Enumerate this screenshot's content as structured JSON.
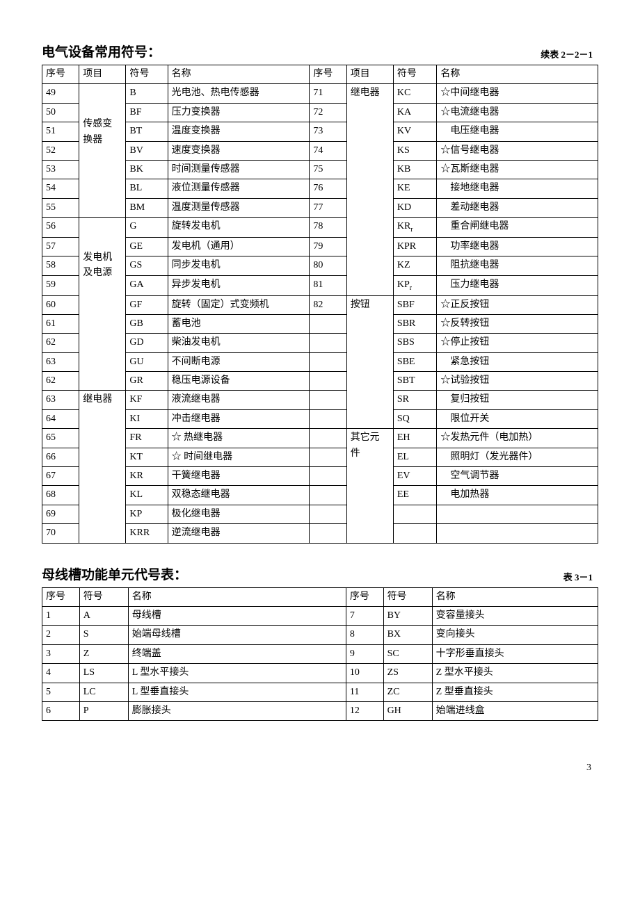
{
  "page_number": "3",
  "table1": {
    "title": "电气设备常用符号：",
    "caption": "续表 2－2－1",
    "col_widths": [
      "46",
      "58",
      "52",
      "176",
      "46",
      "58",
      "54",
      "200"
    ],
    "header": [
      "序号",
      "项目",
      "符号",
      "名称",
      "序号",
      "项目",
      "符号",
      "名称"
    ],
    "rows": [
      {
        "n1": "49",
        "cat1": "",
        "sym1": "B",
        "name1": "光电池、热电传感器",
        "n2": "71",
        "cat2": "继电器",
        "sym2": "KC",
        "name2": "☆中间继电器"
      },
      {
        "n1": "50",
        "cat1": "",
        "sym1": "BF",
        "name1": "压力变换器",
        "n2": "72",
        "cat2": "",
        "sym2": "KA",
        "name2": "☆电流继电器"
      },
      {
        "n1": "51",
        "cat1": "传感变",
        "sym1": "BT",
        "name1": "温度变换器",
        "n2": "73",
        "cat2": "",
        "sym2": "KV",
        "name2": "　电压继电器"
      },
      {
        "n1": "52",
        "cat1": "换器",
        "sym1": "BV",
        "name1": "速度变换器",
        "n2": "74",
        "cat2": "",
        "sym2": "KS",
        "name2": "☆信号继电器"
      },
      {
        "n1": "53",
        "cat1": "",
        "sym1": "BK",
        "name1": "时间测量传感器",
        "n2": "75",
        "cat2": "",
        "sym2": "KB",
        "name2": "☆瓦斯继电器"
      },
      {
        "n1": "54",
        "cat1": "",
        "sym1": "BL",
        "name1": "液位测量传感器",
        "n2": "76",
        "cat2": "",
        "sym2": "KE",
        "name2": "　接地继电器"
      },
      {
        "n1": "55",
        "cat1": "",
        "sym1": "BM",
        "name1": "温度测量传感器",
        "n2": "77",
        "cat2": "",
        "sym2": " KD",
        "name2": "　差动继电器"
      },
      {
        "n1": "56",
        "cat1": "",
        "sym1": "G",
        "name1": "旋转发电机",
        "n2": "78",
        "cat2": "",
        "sym2": "KR<sub>r</sub>",
        "name2": "　重合闸继电器"
      },
      {
        "n1": "57",
        "cat1": "",
        "sym1": "GE",
        "name1": "发电机（通用）",
        "n2": "79",
        "cat2": "",
        "sym2": "KPR",
        "name2": "　功率继电器"
      },
      {
        "n1": "58",
        "cat1": "发电机",
        "sym1": "GS",
        "name1": "同步发电机",
        "n2": "80",
        "cat2": "",
        "sym2": "KZ",
        "name2": "　阻抗继电器"
      },
      {
        "n1": "59",
        "cat1": "及电源",
        "sym1": "GA",
        "name1": "异步发电机",
        "n2": "81",
        "cat2": "",
        "sym2": "KP<sub>r</sub>",
        "name2": "　压力继电器"
      },
      {
        "n1": "60",
        "cat1": "",
        "sym1": "GF",
        "name1": "旋转（固定）式变频机",
        "n2": "82",
        "cat2": "按钮",
        "sym2": "SBF",
        "name2": "☆正反按钮"
      },
      {
        "n1": "61",
        "cat1": "",
        "sym1": "GB",
        "name1": "蓄电池",
        "n2": "",
        "cat2": "",
        "sym2": "SBR",
        "name2": "☆反转按钮"
      },
      {
        "n1": "62",
        "cat1": "",
        "sym1": "GD",
        "name1": "柴油发电机",
        "n2": "",
        "cat2": "",
        "sym2": "SBS",
        "name2": "☆停止按钮"
      },
      {
        "n1": "63",
        "cat1": "",
        "sym1": "GU",
        "name1": "不间断电源",
        "n2": "",
        "cat2": "",
        "sym2": "SBE",
        "name2": "　紧急按钮"
      },
      {
        "n1": "62",
        "cat1": "",
        "sym1": "GR",
        "name1": "稳压电源设备",
        "n2": "",
        "cat2": "",
        "sym2": "SBT",
        "name2": "☆试验按钮"
      },
      {
        "n1": "63",
        "cat1": "继电器",
        "sym1": "KF",
        "name1": "液流继电器",
        "n2": "",
        "cat2": "",
        "sym2": "SR",
        "name2": "　复归按钮"
      },
      {
        "n1": "64",
        "cat1": "",
        "sym1": "KI",
        "name1": "冲击继电器",
        "n2": "",
        "cat2": "",
        "sym2": "SQ",
        "name2": "　限位开关"
      },
      {
        "n1": "65",
        "cat1": "",
        "sym1": "FR",
        "name1": "☆ 热继电器",
        "n2": "",
        "cat2": "其它元",
        "sym2": "EH",
        "name2": "☆发热元件（电加热）"
      },
      {
        "n1": "66",
        "cat1": "",
        "sym1": "KT",
        "name1": "☆ 时间继电器",
        "n2": "",
        "cat2": "件",
        "sym2": "EL",
        "name2": "　照明灯（发光器件）"
      },
      {
        "n1": "67",
        "cat1": "",
        "sym1": "KR",
        "name1": "干簧继电器",
        "n2": "",
        "cat2": "",
        "sym2": "EV",
        "name2": "　空气调节器"
      },
      {
        "n1": "68",
        "cat1": "",
        "sym1": "KL",
        "name1": "双稳态继电器",
        "n2": "",
        "cat2": "",
        "sym2": "EE",
        "name2": "　电加热器"
      },
      {
        "n1": "69",
        "cat1": "",
        "sym1": "KP",
        "name1": "极化继电器",
        "n2": "",
        "cat2": "",
        "sym2": "",
        "name2": ""
      },
      {
        "n1": "70",
        "cat1": "",
        "sym1": "KRR",
        "name1": "逆流继电器",
        "n2": "",
        "cat2": "",
        "sym2": "",
        "name2": ""
      }
    ],
    "group_spans_left": {
      "0": 7,
      "7": 9,
      "16": 8
    },
    "group_spans_right": {
      "0": 11,
      "11": 7,
      "18": 6
    }
  },
  "table2": {
    "title": "母线槽功能单元代号表：",
    "caption": "表 3－1",
    "col_widths": [
      "46",
      "60",
      "268",
      "46",
      "60",
      "204"
    ],
    "header": [
      "序号",
      "符号",
      "名称",
      "序号",
      "符号",
      "名称"
    ],
    "rows": [
      {
        "n1": "1",
        "sym1": "A",
        "name1": "母线槽",
        "n2": "7",
        "sym2": "BY",
        "name2": "变容量接头"
      },
      {
        "n1": "2",
        "sym1": "S",
        "name1": "始端母线槽",
        "n2": "8",
        "sym2": "BX",
        "name2": "变向接头"
      },
      {
        "n1": "3",
        "sym1": "Z",
        "name1": "终端盖",
        "n2": "9",
        "sym2": "SC",
        "name2": "十字形垂直接头"
      },
      {
        "n1": "4",
        "sym1": "LS",
        "name1": "L 型水平接头",
        "n2": "10",
        "sym2": "ZS",
        "name2": "Z 型水平接头"
      },
      {
        "n1": "5",
        "sym1": "LC",
        "name1": "L 型垂直接头",
        "n2": "11",
        "sym2": "ZC",
        "name2": "Z 型垂直接头"
      },
      {
        "n1": "6",
        "sym1": "P",
        "name1": "膨胀接头",
        "n2": "12",
        "sym2": "GH",
        "name2": "始端进线盒"
      }
    ]
  }
}
